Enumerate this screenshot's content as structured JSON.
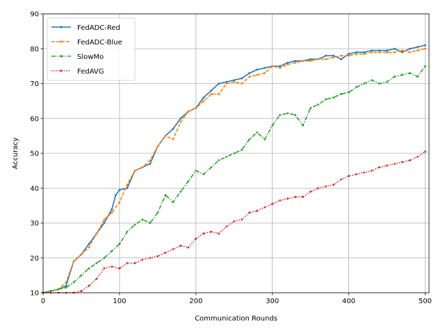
{
  "chart_data": {
    "type": "line",
    "title": "",
    "xlabel": "Communication Rounds",
    "ylabel": "Accuracy",
    "xlim": [
      0,
      505
    ],
    "ylim": [
      10,
      90
    ],
    "xticks": [
      0,
      100,
      200,
      300,
      400,
      500
    ],
    "yticks": [
      10,
      20,
      30,
      40,
      50,
      60,
      70,
      80,
      90
    ],
    "grid": true,
    "legend_position": "top-left",
    "series": [
      {
        "name": "FedADC-Red",
        "color": "#1f77b4",
        "style": "solid",
        "marker": "dot",
        "x": [
          0,
          10,
          20,
          30,
          40,
          50,
          60,
          70,
          80,
          90,
          95,
          100,
          110,
          120,
          130,
          140,
          150,
          160,
          170,
          180,
          190,
          200,
          210,
          220,
          230,
          240,
          250,
          260,
          270,
          280,
          290,
          300,
          310,
          320,
          330,
          340,
          350,
          360,
          370,
          380,
          390,
          400,
          410,
          420,
          430,
          440,
          450,
          460,
          470,
          480,
          490,
          500
        ],
        "y": [
          10,
          10.5,
          11,
          12,
          19,
          21,
          24,
          27,
          30,
          34,
          38,
          39.5,
          40,
          45,
          46,
          47,
          52,
          55,
          57,
          60,
          62,
          63,
          66,
          68,
          70,
          70.5,
          71,
          71.5,
          73,
          74,
          74.5,
          75,
          75,
          76,
          76.5,
          76.5,
          77,
          77,
          78,
          78,
          77,
          78.5,
          79,
          79,
          79.5,
          79.5,
          79.5,
          80,
          79,
          80,
          80.5,
          81
        ]
      },
      {
        "name": "FedADC-Blue",
        "color": "#ff7f0e",
        "style": "dashed",
        "marker": "dot",
        "x": [
          0,
          10,
          20,
          30,
          40,
          50,
          60,
          70,
          80,
          90,
          100,
          110,
          120,
          130,
          140,
          150,
          160,
          170,
          180,
          190,
          200,
          210,
          220,
          230,
          240,
          250,
          260,
          270,
          280,
          290,
          300,
          310,
          320,
          330,
          340,
          350,
          360,
          370,
          380,
          390,
          400,
          410,
          420,
          430,
          440,
          450,
          460,
          470,
          480,
          490,
          500
        ],
        "y": [
          10,
          10.5,
          11,
          13,
          19,
          21,
          23,
          27,
          31,
          33,
          36,
          41,
          45,
          46,
          48,
          52,
          55,
          54,
          59,
          62,
          63,
          65,
          67,
          67,
          70,
          70.5,
          70,
          72,
          72.5,
          73,
          75,
          74.5,
          75.5,
          76,
          76.5,
          76.5,
          77,
          77,
          77.5,
          78,
          78,
          78.5,
          78.5,
          79,
          79,
          79,
          79,
          79.5,
          79,
          79.5,
          80
        ]
      },
      {
        "name": "SlowMo",
        "color": "#2ca02c",
        "style": "dashdot",
        "marker": "dot",
        "x": [
          0,
          10,
          20,
          30,
          40,
          50,
          60,
          70,
          80,
          90,
          100,
          110,
          120,
          130,
          140,
          150,
          160,
          170,
          180,
          190,
          200,
          210,
          220,
          230,
          240,
          250,
          260,
          270,
          280,
          290,
          300,
          310,
          320,
          330,
          340,
          350,
          360,
          370,
          380,
          390,
          400,
          410,
          420,
          430,
          440,
          450,
          460,
          470,
          480,
          490,
          500
        ],
        "y": [
          10,
          10.5,
          11,
          11.5,
          13,
          15,
          17,
          18.5,
          20,
          22,
          24,
          27.5,
          29.5,
          31,
          30,
          33,
          38,
          36,
          39,
          42,
          45,
          44,
          46,
          48,
          49,
          50,
          51,
          54,
          56,
          54,
          58,
          61,
          61.5,
          61,
          58,
          63,
          64,
          65.5,
          66,
          67,
          67.5,
          69,
          70,
          71,
          70,
          70.5,
          72,
          72.5,
          73,
          72,
          75
        ]
      },
      {
        "name": "FedAVG",
        "color": "#d62728",
        "style": "dotted",
        "marker": "dot",
        "x": [
          0,
          10,
          20,
          30,
          40,
          50,
          60,
          70,
          80,
          90,
          100,
          110,
          120,
          130,
          140,
          150,
          160,
          170,
          180,
          190,
          200,
          210,
          220,
          230,
          240,
          250,
          260,
          270,
          280,
          290,
          300,
          310,
          320,
          330,
          340,
          350,
          360,
          370,
          380,
          390,
          400,
          410,
          420,
          430,
          440,
          450,
          460,
          470,
          480,
          490,
          500
        ],
        "y": [
          10,
          10,
          10,
          10,
          10,
          10.5,
          12,
          14,
          17,
          17.5,
          17,
          18.5,
          18.5,
          19.5,
          20,
          20.5,
          21.5,
          22.5,
          23.5,
          23,
          25.5,
          27,
          27.5,
          27,
          29,
          30.5,
          31,
          33,
          33.5,
          34.5,
          35.5,
          36.5,
          37,
          37.5,
          37.5,
          39,
          40,
          40.5,
          41,
          42.5,
          43.5,
          44,
          44.5,
          45,
          46,
          46.5,
          47,
          47.5,
          48,
          49,
          50.5
        ]
      }
    ]
  }
}
